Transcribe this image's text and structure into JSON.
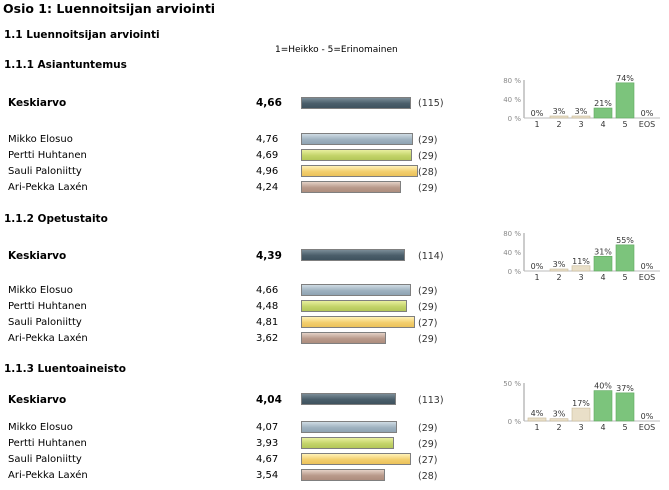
{
  "page_title": "Osio 1: Luennoitsijan arviointi",
  "section_title": "1.1 Luennoitsijan arviointi",
  "scale_note": "1=Heikko - 5=Erinomainen",
  "colors": {
    "avg": "#4a5e6a",
    "mikko": "#9fb2c0",
    "pertti": "#c4d46a",
    "sauli": "#f3cf6f",
    "aripekka": "#b99a8b",
    "dist_green": "#7cc47c"
  },
  "max_score": 5,
  "questions": [
    {
      "title": "1.1.1 Asiantuntemus",
      "average": {
        "label": "Keskiarvo",
        "value": "4,66",
        "score": 4.66,
        "count": "(115)"
      },
      "rows": [
        {
          "name": "Mikko Elosuo",
          "value": "4,76",
          "score": 4.76,
          "count": "(29)"
        },
        {
          "name": "Pertti Huhtanen",
          "value": "4,69",
          "score": 4.69,
          "count": "(29)"
        },
        {
          "name": "Sauli Paloniitty",
          "value": "4,96",
          "score": 4.96,
          "count": "(28)"
        },
        {
          "name": "Ari-Pekka Laxén",
          "value": "4,24",
          "score": 4.24,
          "count": "(29)"
        }
      ],
      "distribution": {
        "y_ticks": [
          "80 %",
          "40 %",
          "0 %"
        ],
        "y_max": 80,
        "categories": [
          "1",
          "2",
          "3",
          "4",
          "5",
          "EOS"
        ],
        "values": [
          0,
          3,
          3,
          21,
          74,
          0
        ],
        "labels": [
          "0%",
          "3%",
          "3%",
          "21%",
          "74%",
          "0%"
        ]
      }
    },
    {
      "title": "1.1.2 Opetustaito",
      "average": {
        "label": "Keskiarvo",
        "value": "4,39",
        "score": 4.39,
        "count": "(114)"
      },
      "rows": [
        {
          "name": "Mikko Elosuo",
          "value": "4,66",
          "score": 4.66,
          "count": "(29)"
        },
        {
          "name": "Pertti Huhtanen",
          "value": "4,48",
          "score": 4.48,
          "count": "(29)"
        },
        {
          "name": "Sauli Paloniitty",
          "value": "4,81",
          "score": 4.81,
          "count": "(27)"
        },
        {
          "name": "Ari-Pekka Laxén",
          "value": "3,62",
          "score": 3.62,
          "count": "(29)"
        }
      ],
      "distribution": {
        "y_ticks": [
          "80 %",
          "40 %",
          "0 %"
        ],
        "y_max": 80,
        "categories": [
          "1",
          "2",
          "3",
          "4",
          "5",
          "EOS"
        ],
        "values": [
          0,
          3,
          11,
          31,
          55,
          0
        ],
        "labels": [
          "0%",
          "3%",
          "11%",
          "31%",
          "55%",
          "0%"
        ]
      }
    },
    {
      "title": "1.1.3 Luentoaineisto",
      "average": {
        "label": "Keskiarvo",
        "value": "4,04",
        "score": 4.04,
        "count": "(113)"
      },
      "rows": [
        {
          "name": "Mikko Elosuo",
          "value": "4,07",
          "score": 4.07,
          "count": "(29)"
        },
        {
          "name": "Pertti Huhtanen",
          "value": "3,93",
          "score": 3.93,
          "count": "(29)"
        },
        {
          "name": "Sauli Paloniitty",
          "value": "4,67",
          "score": 4.67,
          "count": "(27)"
        },
        {
          "name": "Ari-Pekka Laxén",
          "value": "3,54",
          "score": 3.54,
          "count": "(28)"
        }
      ],
      "distribution": {
        "y_ticks": [
          "50 %",
          "0 %"
        ],
        "y_max": 50,
        "categories": [
          "1",
          "2",
          "3",
          "4",
          "5",
          "EOS"
        ],
        "values": [
          4,
          3,
          17,
          40,
          37,
          0
        ],
        "labels": [
          "4%",
          "3%",
          "17%",
          "40%",
          "37%",
          "0%"
        ]
      }
    }
  ]
}
